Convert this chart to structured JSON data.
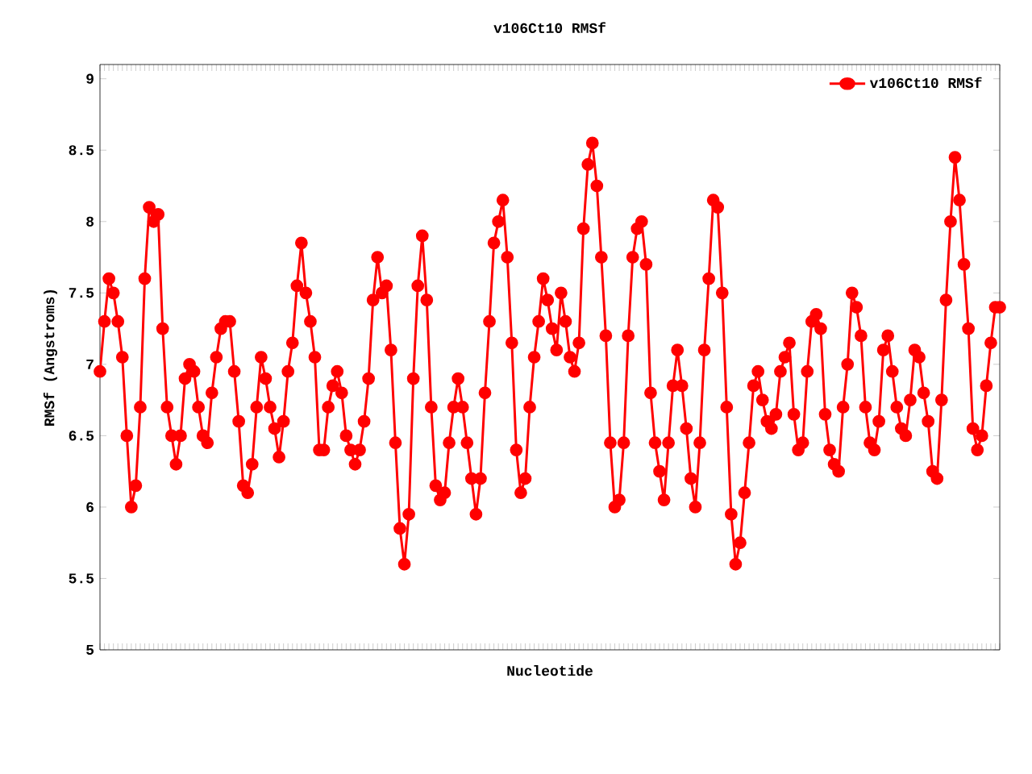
{
  "chart_data": {
    "type": "line",
    "title": "v106Ct10 RMSf",
    "xlabel": "Nucleotide",
    "ylabel": "RMSf (Angstroms)",
    "categories": [
      null,
      null,
      null,
      null,
      null,
      null,
      null,
      null,
      null,
      null,
      null,
      null,
      null,
      null,
      null,
      null,
      null,
      null,
      null,
      null,
      null,
      null,
      null,
      null,
      null,
      null,
      null,
      null,
      null,
      null,
      null,
      null,
      null,
      null,
      null,
      null,
      null,
      null,
      null,
      null,
      null,
      null,
      null,
      null,
      null,
      null,
      null,
      null,
      null,
      null,
      null,
      null,
      null,
      null,
      null,
      null,
      null,
      null,
      null,
      null,
      null,
      null,
      null,
      null,
      null,
      null,
      null,
      null,
      null,
      null,
      null,
      null,
      null,
      null,
      null,
      null,
      null,
      null,
      null,
      null,
      null,
      null,
      null,
      null,
      null,
      null,
      null,
      null,
      null,
      null,
      null,
      null,
      null,
      null,
      null,
      null,
      null,
      null,
      null,
      null,
      null,
      null,
      null,
      null,
      null,
      null,
      null,
      null,
      null,
      null,
      null,
      null,
      null,
      null,
      null,
      null,
      null,
      null,
      null,
      null,
      null,
      null,
      null,
      null,
      null,
      null,
      null,
      null,
      null,
      null,
      null,
      null,
      null,
      null,
      null,
      null,
      null,
      null,
      null,
      null,
      null,
      null,
      null,
      null,
      null,
      null,
      null,
      null,
      null,
      null,
      null,
      null,
      null,
      null,
      null,
      null,
      null,
      null,
      null,
      null,
      null,
      null,
      null,
      null,
      null,
      null,
      null,
      null,
      null,
      null,
      null,
      null,
      null,
      null,
      null,
      null,
      null,
      null,
      null,
      null,
      null,
      null,
      null,
      null,
      null,
      null,
      null,
      null,
      null,
      null,
      null,
      null,
      null,
      null,
      null,
      null,
      null,
      null,
      null,
      null,
      null,
      null
    ],
    "series": [
      {
        "name": "v106Ct10 RMSf",
        "color": "#ff0000",
        "values": [
          6.95,
          7.3,
          7.6,
          7.5,
          7.3,
          7.05,
          6.5,
          6.0,
          6.15,
          6.7,
          7.6,
          8.1,
          8.0,
          8.05,
          7.25,
          6.7,
          6.5,
          6.3,
          6.5,
          6.9,
          7.0,
          6.95,
          6.7,
          6.5,
          6.45,
          6.8,
          7.05,
          7.25,
          7.3,
          7.3,
          6.95,
          6.6,
          6.15,
          6.1,
          6.3,
          6.7,
          7.05,
          6.9,
          6.7,
          6.55,
          6.35,
          6.6,
          6.95,
          7.15,
          7.55,
          7.85,
          7.5,
          7.3,
          7.05,
          6.4,
          6.4,
          6.7,
          6.85,
          6.95,
          6.8,
          6.5,
          6.4,
          6.3,
          6.4,
          6.6,
          6.9,
          7.45,
          7.75,
          7.5,
          7.55,
          7.1,
          6.45,
          5.85,
          5.6,
          5.95,
          6.9,
          7.55,
          7.9,
          7.45,
          6.7,
          6.15,
          6.05,
          6.1,
          6.45,
          6.7,
          6.9,
          6.7,
          6.45,
          6.2,
          5.95,
          6.2,
          6.8,
          7.3,
          7.85,
          8.0,
          8.15,
          7.75,
          7.15,
          6.4,
          6.1,
          6.2,
          6.7,
          7.05,
          7.3,
          7.6,
          7.45,
          7.25,
          7.1,
          7.5,
          7.3,
          7.05,
          6.95,
          7.15,
          7.95,
          8.4,
          8.55,
          8.25,
          7.75,
          7.2,
          6.45,
          6.0,
          6.05,
          6.45,
          7.2,
          7.75,
          7.95,
          8.0,
          7.7,
          6.8,
          6.45,
          6.25,
          6.05,
          6.45,
          6.85,
          7.1,
          6.85,
          6.55,
          6.2,
          6.0,
          6.45,
          7.1,
          7.6,
          8.15,
          8.1,
          7.5,
          6.7,
          5.95,
          5.6,
          5.75,
          6.1,
          6.45,
          6.85,
          6.95,
          6.75,
          6.6,
          6.55,
          6.65,
          6.95,
          7.05,
          7.15,
          6.65,
          6.4,
          6.45,
          6.95,
          7.3,
          7.35,
          7.25,
          6.65,
          6.4,
          6.3,
          6.25,
          6.7,
          7.0,
          7.5,
          7.4,
          7.2,
          6.7,
          6.45,
          6.4,
          6.6,
          7.1,
          7.2,
          6.95,
          6.7,
          6.55,
          6.5,
          6.75,
          7.1,
          7.05,
          6.8,
          6.6,
          6.25,
          6.2,
          6.75,
          7.45,
          8.0,
          8.45,
          8.15,
          7.7,
          7.25,
          6.55,
          6.4,
          6.5,
          6.85,
          7.15,
          7.4,
          7.4
        ]
      }
    ],
    "ylim": [
      5,
      9.1
    ],
    "yticks": [
      5,
      {
        "value": 5.5,
        "label": "5.5"
      },
      6,
      {
        "value": 6.5,
        "label": "6.5"
      },
      7,
      {
        "value": 7.5,
        "label": "7.5"
      },
      8,
      {
        "value": 8.5,
        "label": "8.5"
      },
      9
    ],
    "legend": "top right",
    "marker": "circle",
    "line_style": "solid",
    "grid": false
  }
}
